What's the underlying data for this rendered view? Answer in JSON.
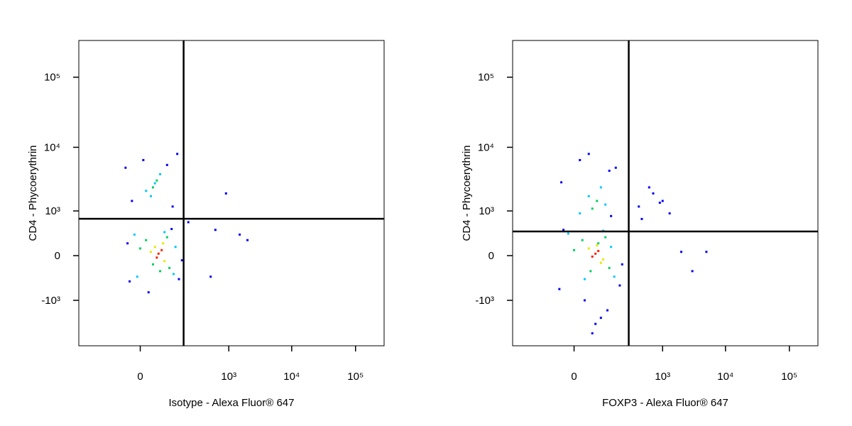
{
  "chart_data": [
    {
      "type": "scatter",
      "xlabel": "Isotype - Alexa Fluor® 647",
      "ylabel": "CD4 - Phycoerythrin",
      "xscale": "biex",
      "yscale": "biex",
      "xlim": [
        -350,
        280000
      ],
      "ylim": [
        -5400,
        330000
      ],
      "xticks": [
        0,
        {
          "value": 1000,
          "label": "10³"
        },
        {
          "value": 10000,
          "label": "10⁴"
        },
        {
          "value": 100000,
          "label": "10⁵"
        }
      ],
      "yticks": [
        {
          "value": -1000,
          "label": "-10³"
        },
        0,
        {
          "value": 1000,
          "label": "10³"
        },
        {
          "value": 10000,
          "label": "10⁴"
        },
        {
          "value": 100000,
          "label": "10⁵"
        }
      ],
      "gates": {
        "x": 162,
        "y": 707
      },
      "series": [
        {
          "color": "#0000ff",
          "x": [
            -20,
            130,
            90,
            -25,
            150,
            15,
            5,
            70,
            -15,
            95,
            200,
            600,
            900,
            1500,
            2000,
            500,
            -30,
            120
          ],
          "values": [
            -400,
            -350,
            420,
            150,
            -50,
            -700,
            6500,
            5500,
            1500,
            1200,
            600,
            400,
            2000,
            300,
            200,
            -300,
            5000,
            8000
          ]
        },
        {
          "color": "#00c8ff",
          "x": [
            -10,
            100,
            60,
            -5,
            110,
            20,
            45,
            10,
            30
          ],
          "values": [
            300,
            -250,
            350,
            -300,
            100,
            1800,
            4000,
            2200,
            2900
          ]
        },
        {
          "color": "#00d060",
          "x": [
            10,
            80,
            25,
            70,
            45,
            0,
            25,
            35
          ],
          "values": [
            200,
            -150,
            -100,
            250,
            -200,
            80,
            2500,
            3200
          ]
        },
        {
          "color": "#e8e800",
          "x": [
            30,
            60,
            20,
            55
          ],
          "values": [
            100,
            -60,
            40,
            150
          ]
        },
        {
          "color": "#ff2000",
          "x": [
            40,
            50,
            35
          ],
          "values": [
            20,
            60,
            -20
          ]
        }
      ]
    },
    {
      "type": "scatter",
      "xlabel": "FOXP3 - Alexa Fluor® 647",
      "ylabel": "CD4 - Phycoerythrin",
      "xscale": "biex",
      "yscale": "biex",
      "xlim": [
        -350,
        280000
      ],
      "ylim": [
        -5400,
        330000
      ],
      "xticks": [
        0,
        {
          "value": 1000,
          "label": "10³"
        },
        {
          "value": 10000,
          "label": "10⁴"
        },
        {
          "value": 100000,
          "label": "10⁵"
        }
      ],
      "yticks": [
        {
          "value": -1000,
          "label": "-10³"
        },
        0,
        {
          "value": 1000,
          "label": "10³"
        },
        {
          "value": 10000,
          "label": "10⁴"
        },
        {
          "value": 100000,
          "label": "10⁵"
        }
      ],
      "gates": {
        "x": 265,
        "y": 365
      },
      "series": [
        {
          "color": "#0000ff",
          "x": [
            -30,
            180,
            100,
            -20,
            200,
            50,
            10,
            150,
            -25,
            120,
            400,
            700,
            1000,
            1300,
            600,
            900,
            450,
            40,
            70,
            20,
            110,
            30,
            5000,
            2000,
            3000
          ],
          "values": [
            -600,
            -500,
            -1500,
            400,
            -100,
            -2500,
            6500,
            5000,
            3000,
            800,
            1200,
            2000,
            1500,
            900,
            2500,
            1400,
            700,
            -3500,
            -2000,
            -1000,
            4500,
            8000,
            40,
            40,
            -200
          ]
        },
        {
          "color": "#00c8ff",
          "x": [
            -10,
            140,
            80,
            20,
            120,
            30,
            70,
            10,
            90
          ],
          "values": [
            320,
            -300,
            380,
            -350,
            100,
            1800,
            2500,
            900,
            1300
          ]
        },
        {
          "color": "#00d060",
          "x": [
            15,
            110,
            35,
            90,
            0,
            60,
            40,
            55
          ],
          "values": [
            200,
            -150,
            -200,
            250,
            60,
            150,
            1100,
            1500
          ]
        },
        {
          "color": "#e8e800",
          "x": [
            30,
            80,
            55,
            70
          ],
          "values": [
            80,
            -40,
            120,
            -80
          ]
        },
        {
          "color": "#ff2000",
          "x": [
            50,
            60,
            40
          ],
          "values": [
            20,
            50,
            -10
          ]
        }
      ]
    }
  ]
}
